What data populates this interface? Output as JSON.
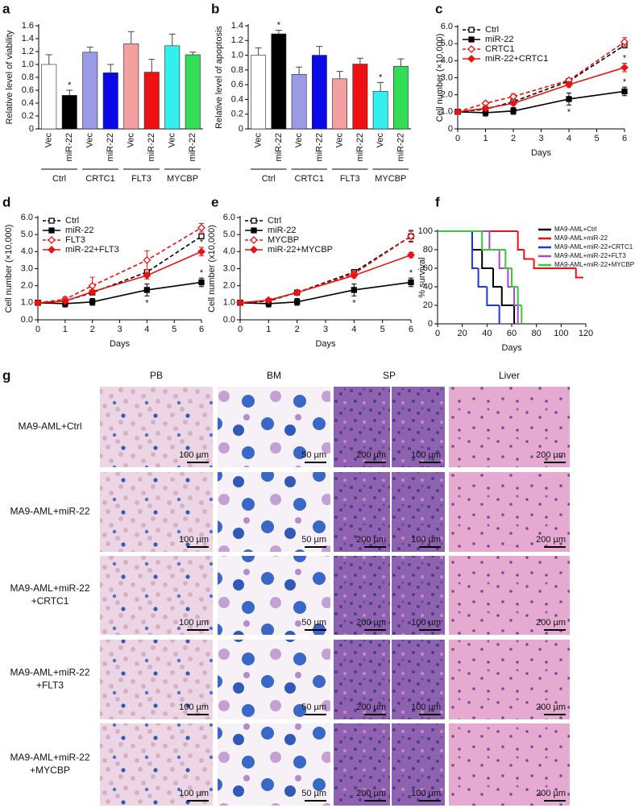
{
  "chart_data": [
    {
      "panel": "a",
      "type": "bar",
      "y_label": "Relative level of viability",
      "categories": [
        "Vec",
        "miR-22",
        "Vec",
        "miR-22",
        "Vec",
        "miR-22",
        "Vec",
        "miR-22"
      ],
      "groups": [
        "Ctrl",
        "CRTC1",
        "FLT3",
        "MYCBP"
      ],
      "values": [
        1.0,
        0.52,
        1.19,
        0.87,
        1.32,
        0.88,
        1.29,
        1.15
      ],
      "errors": [
        0.15,
        0.08,
        0.08,
        0.13,
        0.19,
        0.2,
        0.18,
        0.04
      ],
      "colors": [
        "#ffffff",
        "#000000",
        "#9a9ae6",
        "#0a0ae6",
        "#f2a0a0",
        "#ee1111",
        "#33f0f0",
        "#33dd55"
      ],
      "significance": [
        null,
        "*",
        null,
        null,
        null,
        null,
        null,
        null
      ],
      "ylim": [
        0,
        1.6
      ],
      "yticks": [
        0,
        0.2,
        0.4,
        0.6,
        0.8,
        {
          "value": 1,
          "label": "1.0"
        },
        1.2,
        1.4,
        1.6
      ]
    },
    {
      "panel": "b",
      "type": "bar",
      "y_label": "Relative level of apoptosis",
      "categories": [
        "Vec",
        "miR-22",
        "Vec",
        "miR-22",
        "Vec",
        "miR-22",
        "Vec",
        "miR-22"
      ],
      "groups": [
        "Ctrl",
        "CRTC1",
        "FLT3",
        "MYCBP"
      ],
      "values": [
        1.0,
        1.29,
        0.74,
        1.0,
        0.68,
        0.88,
        0.51,
        0.85
      ],
      "errors": [
        0.1,
        0.05,
        0.1,
        0.12,
        0.1,
        0.08,
        0.12,
        0.1
      ],
      "colors": [
        "#ffffff",
        "#000000",
        "#9a9ae6",
        "#0a0ae6",
        "#f2a0a0",
        "#ee1111",
        "#33f0f0",
        "#33dd55"
      ],
      "significance": [
        null,
        "*",
        null,
        null,
        null,
        null,
        "*",
        null
      ],
      "ylim": [
        0,
        1.4
      ],
      "yticks": [
        0,
        0.2,
        0.4,
        0.6,
        0.8,
        {
          "value": 1,
          "label": "1.0"
        },
        1.2,
        1.4
      ]
    },
    {
      "panel": "c",
      "type": "line",
      "y_label": "Cell number (×10,000)",
      "x_label": "Days",
      "legend": "upper left",
      "x": [
        0,
        1,
        2,
        4,
        6
      ],
      "xlim": [
        0,
        6
      ],
      "xticks": [
        0,
        1,
        2,
        3,
        4,
        5,
        6
      ],
      "ylim": [
        0,
        6
      ],
      "yticks": [
        0,
        {
          "value": 1,
          "label": "1.0"
        },
        {
          "value": 2,
          "label": "2.0"
        },
        {
          "value": 3,
          "label": "3.0"
        },
        {
          "value": 4,
          "label": "4.0"
        },
        {
          "value": 5,
          "label": "5.0"
        },
        {
          "value": 6,
          "label": "6.0"
        }
      ],
      "series": [
        {
          "name": "Ctrl",
          "color": "#000000",
          "linestyle": "dashed",
          "marker": "square",
          "marker_fill": "open",
          "values": [
            1.0,
            1.15,
            1.6,
            2.8,
            4.9
          ],
          "errors": [
            0.05,
            0.1,
            0.1,
            0.15,
            0.15
          ]
        },
        {
          "name": "miR-22",
          "color": "#000000",
          "linestyle": "solid",
          "marker": "square",
          "marker_fill": "filled",
          "values": [
            1.0,
            0.95,
            1.05,
            1.75,
            2.2
          ],
          "errors": [
            0.05,
            0.2,
            0.2,
            0.35,
            0.25
          ],
          "significance": [
            null,
            null,
            null,
            "*",
            "*"
          ]
        },
        {
          "name": "CRTC1",
          "color": "#ee1111",
          "linestyle": "dashed",
          "marker": "diamond",
          "marker_fill": "open",
          "values": [
            1.0,
            1.5,
            1.9,
            2.85,
            5.1
          ],
          "errors": [
            0.05,
            0.1,
            0.15,
            0.1,
            0.25
          ]
        },
        {
          "name": "miR-22+CRTC1",
          "color": "#ee1111",
          "linestyle": "solid",
          "marker": "diamond",
          "marker_fill": "filled",
          "values": [
            1.0,
            1.2,
            1.5,
            2.6,
            3.6
          ],
          "errors": [
            0.05,
            0.1,
            0.1,
            0.15,
            0.25
          ],
          "significance": [
            null,
            null,
            null,
            null,
            "*"
          ]
        }
      ]
    },
    {
      "panel": "d",
      "type": "line",
      "y_label": "Cell number (×10,000)",
      "x_label": "Days",
      "legend": "upper left",
      "x": [
        0,
        1,
        2,
        4,
        6
      ],
      "xlim": [
        0,
        6
      ],
      "xticks": [
        0,
        1,
        2,
        3,
        4,
        5,
        6
      ],
      "ylim": [
        0,
        6
      ],
      "yticks": [
        {
          "value": 0,
          "label": "0.0"
        },
        {
          "value": 1,
          "label": "1.0"
        },
        {
          "value": 2,
          "label": "2.0"
        },
        {
          "value": 3,
          "label": "3.0"
        },
        {
          "value": 4,
          "label": "4.0"
        },
        {
          "value": 5,
          "label": "5.0"
        },
        {
          "value": 6,
          "label": "6.0"
        }
      ],
      "series": [
        {
          "name": "Ctrl",
          "color": "#000000",
          "linestyle": "dashed",
          "marker": "square",
          "marker_fill": "open",
          "values": [
            1.0,
            1.1,
            1.6,
            2.8,
            4.9
          ],
          "errors": [
            0.05,
            0.1,
            0.1,
            0.15,
            0.15
          ]
        },
        {
          "name": "miR-22",
          "color": "#000000",
          "linestyle": "solid",
          "marker": "square",
          "marker_fill": "filled",
          "values": [
            1.0,
            0.95,
            1.05,
            1.75,
            2.2
          ],
          "errors": [
            0.05,
            0.2,
            0.2,
            0.35,
            0.25
          ],
          "significance": [
            null,
            null,
            null,
            "*",
            "*"
          ]
        },
        {
          "name": "FLT3",
          "color": "#ee1111",
          "linestyle": "dashed",
          "marker": "diamond",
          "marker_fill": "open",
          "values": [
            1.0,
            1.2,
            2.0,
            3.5,
            5.4
          ],
          "errors": [
            0.05,
            0.15,
            0.5,
            0.55,
            0.25
          ]
        },
        {
          "name": "miR-22+FLT3",
          "color": "#ee1111",
          "linestyle": "solid",
          "marker": "diamond",
          "marker_fill": "filled",
          "values": [
            1.0,
            1.1,
            1.65,
            2.6,
            4.0
          ],
          "errors": [
            0.05,
            0.1,
            0.1,
            0.2,
            0.25
          ],
          "significance": [
            null,
            null,
            null,
            null,
            "*"
          ]
        }
      ]
    },
    {
      "panel": "e",
      "type": "line",
      "y_label": "Cell number (x10,000)",
      "x_label": "Days",
      "legend": "upper left",
      "x": [
        0,
        1,
        2,
        4,
        6
      ],
      "xlim": [
        0,
        6
      ],
      "xticks": [
        0,
        1,
        2,
        3,
        4,
        5,
        6
      ],
      "ylim": [
        0,
        6
      ],
      "yticks": [
        {
          "value": 0,
          "label": "0.0"
        },
        {
          "value": 1,
          "label": "1.0"
        },
        {
          "value": 2,
          "label": "2.0"
        },
        {
          "value": 3,
          "label": "3.0"
        },
        {
          "value": 4,
          "label": "4.0"
        },
        {
          "value": 5,
          "label": "5.0"
        },
        {
          "value": 6,
          "label": "6.0"
        }
      ],
      "series": [
        {
          "name": "Ctrl",
          "color": "#000000",
          "linestyle": "dashed",
          "marker": "square",
          "marker_fill": "open",
          "values": [
            1.0,
            1.1,
            1.6,
            2.8,
            4.9
          ],
          "errors": [
            0.05,
            0.1,
            0.1,
            0.15,
            0.3
          ]
        },
        {
          "name": "miR-22",
          "color": "#000000",
          "linestyle": "solid",
          "marker": "square",
          "marker_fill": "filled",
          "values": [
            1.0,
            0.95,
            1.05,
            1.75,
            2.2
          ],
          "errors": [
            0.05,
            0.2,
            0.2,
            0.35,
            0.25
          ],
          "significance": [
            null,
            null,
            null,
            "*",
            "*"
          ]
        },
        {
          "name": "MYCBP",
          "color": "#ee1111",
          "linestyle": "dashed",
          "marker": "diamond",
          "marker_fill": "open",
          "values": [
            1.0,
            1.15,
            1.6,
            2.7,
            4.9
          ],
          "errors": [
            0.05,
            0.1,
            0.1,
            0.15,
            0.35
          ]
        },
        {
          "name": "miR-22+MYCBP",
          "color": "#ee1111",
          "linestyle": "solid",
          "marker": "diamond",
          "marker_fill": "filled",
          "values": [
            1.0,
            1.15,
            1.6,
            2.6,
            3.8
          ],
          "errors": [
            0.05,
            0.1,
            0.1,
            0.15,
            0.15
          ]
        }
      ]
    },
    {
      "panel": "f",
      "type": "step",
      "y_label": "% survival",
      "x_label": "Days",
      "legend": "upper right",
      "xlim": [
        0,
        120
      ],
      "xticks": [
        0,
        20,
        40,
        60,
        80,
        100,
        120
      ],
      "ylim": [
        0,
        100
      ],
      "yticks": [
        0,
        20,
        40,
        60,
        80,
        100
      ],
      "series": [
        {
          "name": "MA9-AML+Ctrl",
          "color": "#000000",
          "x": [
            0,
            28,
            36,
            45,
            52,
            62
          ],
          "values": [
            100,
            80,
            60,
            40,
            20,
            0
          ]
        },
        {
          "name": "MA9-AML+miR-22",
          "color": "#ee1111",
          "x": [
            0,
            65,
            70,
            78,
            112,
            118
          ],
          "values": [
            100,
            80,
            70,
            60,
            50,
            50
          ]
        },
        {
          "name": "MA9-AML+miR-22+CRTC1",
          "color": "#1a3ae0",
          "x": [
            0,
            28,
            33,
            40,
            50
          ],
          "values": [
            100,
            60,
            40,
            20,
            0
          ]
        },
        {
          "name": "MA9-AML+miR-22+FLT3",
          "color": "#b040e0",
          "x": [
            0,
            42,
            50,
            57,
            62,
            65
          ],
          "values": [
            100,
            80,
            60,
            40,
            20,
            0
          ]
        },
        {
          "name": "MA9-AML+miR-22+MYCBP",
          "color": "#33cc33",
          "x": [
            0,
            36,
            55,
            60,
            65,
            68
          ],
          "values": [
            100,
            80,
            60,
            40,
            20,
            0
          ]
        }
      ]
    }
  ],
  "image_grid": {
    "panel": "g",
    "columns": [
      "PB",
      "BM",
      "SP",
      "Liver"
    ],
    "rows": [
      [
        "MA9-AML+Ctrl"
      ],
      [
        "MA9-AML+miR-22"
      ],
      [
        "MA9-AML+miR-22",
        "+CRTC1"
      ],
      [
        "MA9-AML+miR-22",
        "+FLT3"
      ],
      [
        "MA9-AML+miR-22",
        "+MYCBP"
      ]
    ],
    "scale_bars": [
      "100 µm",
      "50 µm",
      "200 µm",
      "100 µm",
      "200 µm"
    ]
  }
}
